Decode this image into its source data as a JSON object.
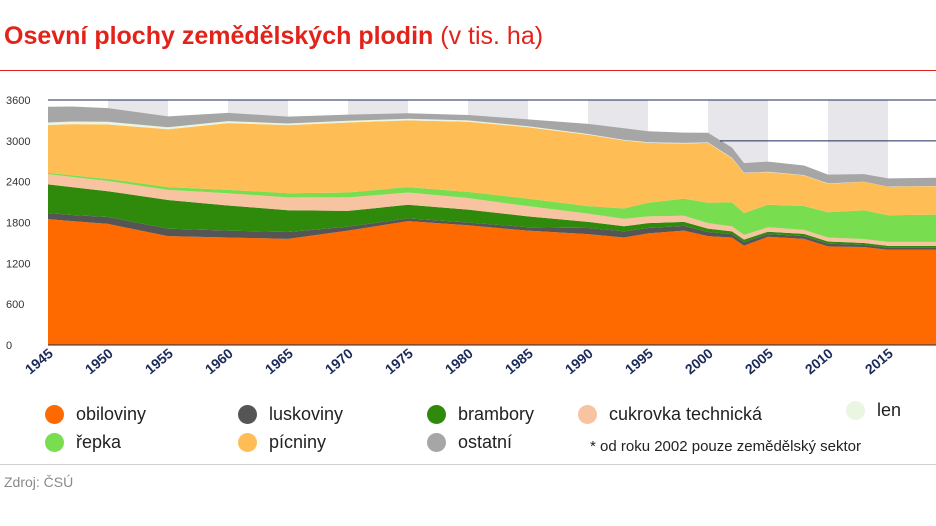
{
  "title": {
    "main": "Osevní plochy zemědělských plodin",
    "unit": "(v tis. ha)"
  },
  "note": "* od roku 2002 pouze zemědělský sektor",
  "source": "Zdroj: ČSÚ",
  "colors": {
    "accent": "#e2231a",
    "stripe": "#e6e6eb",
    "line": "#1c2a5a"
  },
  "chart_data": {
    "type": "area",
    "stacked": true,
    "ylim": [
      0,
      3600
    ],
    "yticks": [
      0,
      600,
      1200,
      1800,
      2400,
      3000,
      3600
    ],
    "xlim": [
      1945,
      2019
    ],
    "xticks": [
      1945,
      1950,
      1955,
      1960,
      1965,
      1970,
      1975,
      1980,
      1985,
      1990,
      1995,
      2000,
      2005,
      2010,
      2015
    ],
    "reference_lines": [
      3600,
      3000
    ],
    "x": [
      1945,
      1947,
      1950,
      1955,
      1960,
      1965,
      1970,
      1975,
      1980,
      1985,
      1990,
      1993,
      1995,
      1998,
      2000,
      2002,
      2003,
      2005,
      2008,
      2010,
      2013,
      2015,
      2019
    ],
    "series": [
      {
        "name": "obiloviny",
        "color": "#ff6a00",
        "values": [
          1850,
          1820,
          1780,
          1600,
          1580,
          1560,
          1680,
          1820,
          1760,
          1680,
          1630,
          1580,
          1640,
          1680,
          1600,
          1580,
          1460,
          1590,
          1560,
          1450,
          1440,
          1400,
          1400
        ]
      },
      {
        "name": "luskoviny",
        "color": "#555555",
        "values": [
          90,
          90,
          100,
          110,
          100,
          100,
          60,
          40,
          40,
          50,
          90,
          90,
          80,
          70,
          60,
          50,
          50,
          40,
          40,
          40,
          30,
          30,
          30
        ]
      },
      {
        "name": "brambory",
        "color": "#2f8a0c",
        "values": [
          420,
          410,
          380,
          420,
          370,
          320,
          230,
          200,
          190,
          160,
          90,
          75,
          70,
          60,
          50,
          40,
          38,
          35,
          32,
          30,
          28,
          26,
          25
        ]
      },
      {
        "name": "cukrovka technická",
        "color": "#f7c3a0",
        "values": [
          150,
          150,
          150,
          150,
          180,
          190,
          200,
          180,
          170,
          150,
          120,
          110,
          100,
          90,
          80,
          75,
          70,
          65,
          60,
          60,
          60,
          60,
          60
        ]
      },
      {
        "name": "řepka",
        "color": "#78de50",
        "values": [
          20,
          25,
          30,
          40,
          50,
          60,
          70,
          80,
          90,
          110,
          110,
          150,
          200,
          250,
          300,
          350,
          320,
          330,
          350,
          370,
          420,
          390,
          400
        ]
      },
      {
        "name": "pícniny",
        "color": "#ffbe55",
        "values": [
          700,
          750,
          800,
          850,
          980,
          1000,
          1030,
          980,
          1030,
          1050,
          1050,
          1000,
          880,
          810,
          880,
          650,
          590,
          480,
          450,
          420,
          420,
          420,
          420
        ]
      },
      {
        "name": "len",
        "color": "#eaf5e2",
        "values": [
          40,
          40,
          40,
          30,
          30,
          25,
          25,
          25,
          20,
          15,
          10,
          10,
          10,
          10,
          8,
          6,
          5,
          5,
          5,
          4,
          3,
          2,
          2
        ]
      },
      {
        "name": "ostatní",
        "color": "#a6a6a6",
        "values": [
          230,
          220,
          200,
          160,
          120,
          100,
          90,
          80,
          80,
          100,
          150,
          170,
          160,
          150,
          140,
          150,
          140,
          150,
          140,
          130,
          110,
          120,
          120
        ]
      }
    ]
  },
  "legend": [
    {
      "key": "obiloviny",
      "label": "obiloviny",
      "color": "#ff6a00"
    },
    {
      "key": "luskoviny",
      "label": "luskoviny",
      "color": "#555555"
    },
    {
      "key": "brambory",
      "label": "brambory",
      "color": "#2f8a0c"
    },
    {
      "key": "cukrovka",
      "label": "cukrovka technická",
      "color": "#f7c3a0"
    },
    {
      "key": "len",
      "label": "len",
      "color": "#eaf5e2"
    },
    {
      "key": "repka",
      "label": "řepka",
      "color": "#78de50"
    },
    {
      "key": "picniny",
      "label": "pícniny",
      "color": "#ffbe55"
    },
    {
      "key": "ostatni",
      "label": "ostatní",
      "color": "#a6a6a6"
    }
  ]
}
